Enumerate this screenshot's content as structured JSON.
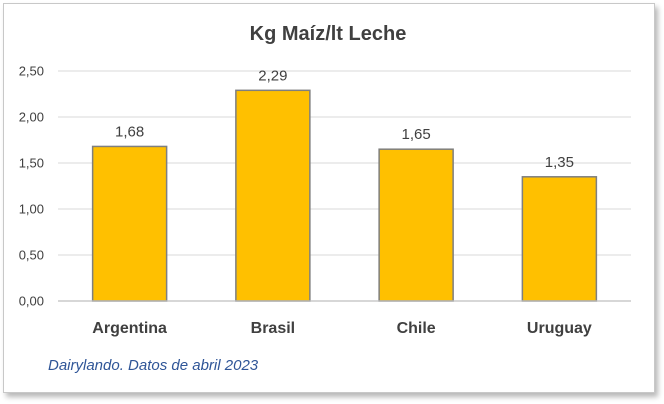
{
  "chart_data": {
    "type": "bar",
    "title": "Kg Maíz/lt Leche",
    "categories": [
      "Argentina",
      "Brasil",
      "Chile",
      "Uruguay"
    ],
    "values": [
      1.68,
      2.29,
      1.65,
      1.35
    ],
    "value_labels": [
      "1,68",
      "2,29",
      "1,65",
      "1,35"
    ],
    "ylim": [
      0,
      2.5
    ],
    "yticks": [
      0,
      0.5,
      1.0,
      1.5,
      2.0,
      2.5
    ],
    "ytick_labels": [
      "0,00",
      "0,50",
      "1,00",
      "1,50",
      "2,00",
      "2,50"
    ],
    "grid": true,
    "legend": "none",
    "bar_color": "#FFC000",
    "bar_border_color": "#7F7F7F"
  },
  "source_note": "Dairylando. Datos de abril 2023"
}
